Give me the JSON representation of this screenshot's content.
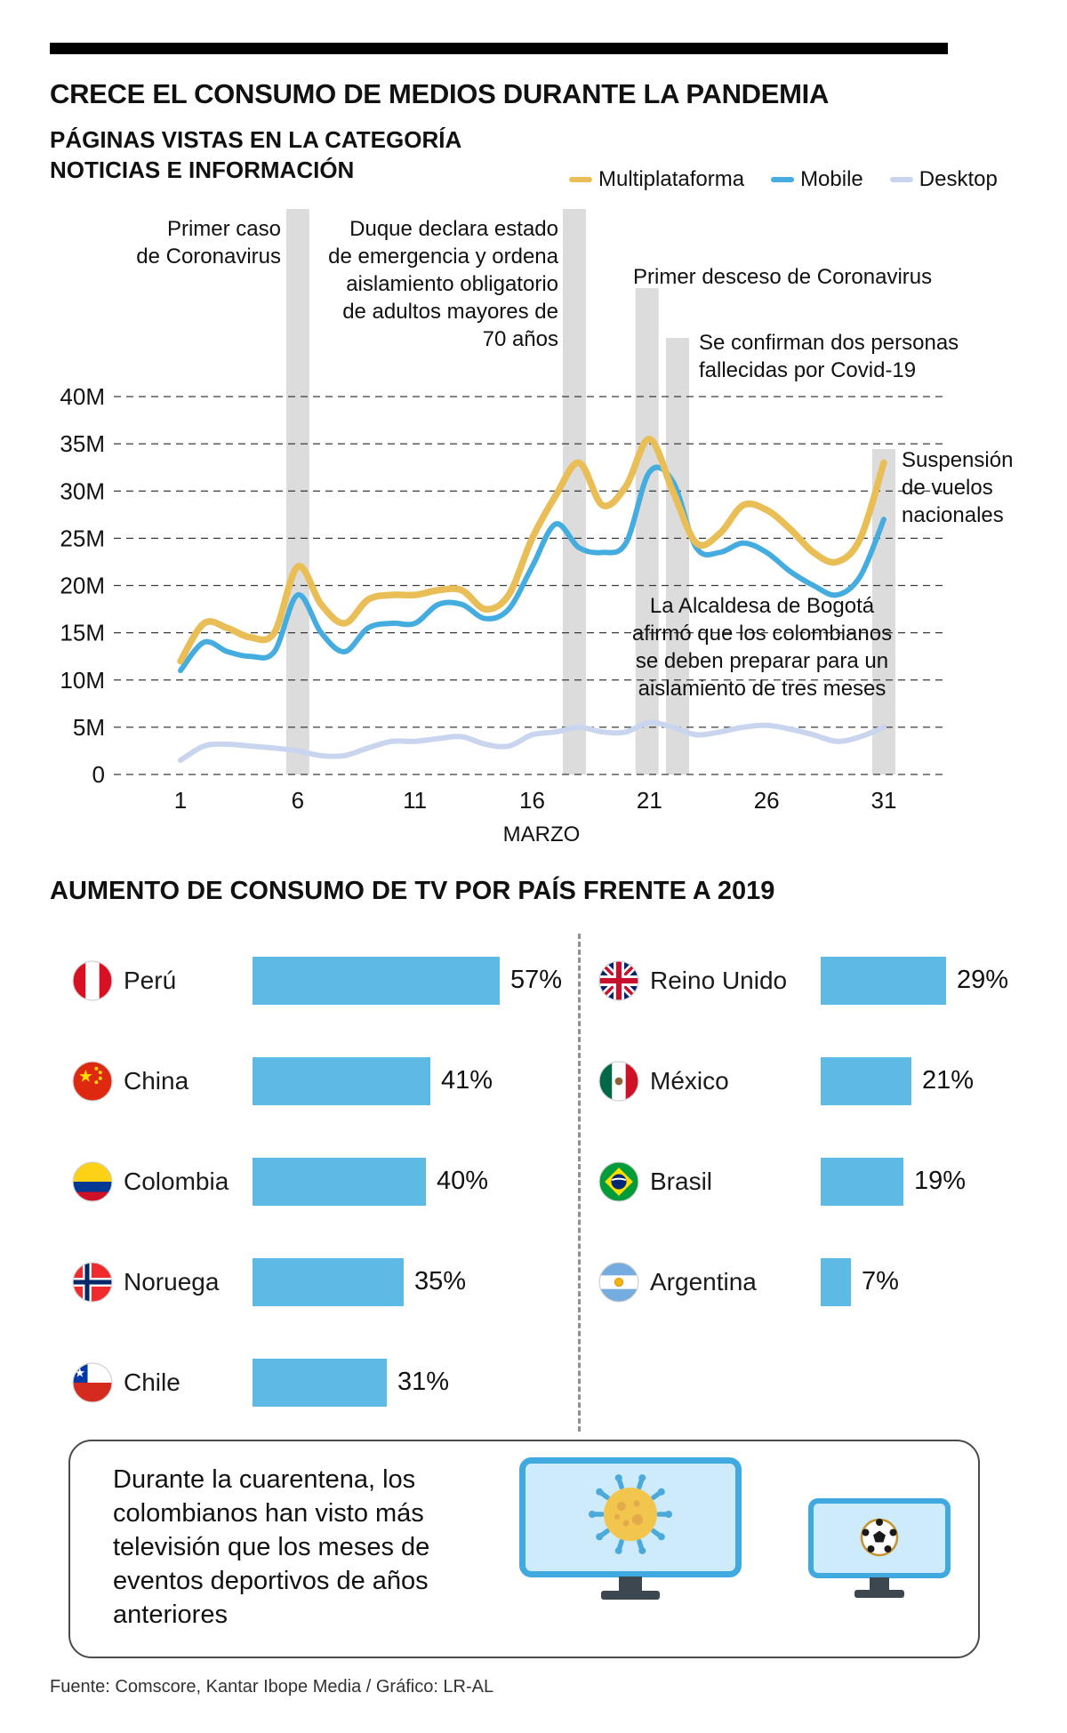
{
  "header": {
    "title": "CRECE EL CONSUMO DE MEDIOS DURANTE LA PANDEMIA",
    "subtitle": "PÁGINAS VISTAS EN LA CATEGORÍA\nNOTICIAS E INFORMACIÓN"
  },
  "chart_data": [
    {
      "type": "line",
      "title": "PÁGINAS VISTAS EN LA CATEGORÍA NOTICIAS E INFORMACIÓN",
      "xlabel": "MARZO",
      "ylabel": "",
      "y_unit": "millions of pageviews",
      "ylim": [
        0,
        40
      ],
      "ytick_labels": [
        "0",
        "5M",
        "10M",
        "15M",
        "20M",
        "25M",
        "30M",
        "35M",
        "40M"
      ],
      "xticks": [
        1,
        6,
        11,
        16,
        21,
        26,
        31
      ],
      "grid": true,
      "legend_position": "top-right",
      "x": [
        1,
        2,
        3,
        4,
        5,
        6,
        7,
        8,
        9,
        10,
        11,
        12,
        13,
        14,
        15,
        16,
        17,
        18,
        19,
        20,
        21,
        22,
        23,
        24,
        25,
        26,
        27,
        28,
        29,
        30,
        31
      ],
      "series": [
        {
          "name": "Multiplataforma",
          "color": "#E9BE56",
          "values": [
            12,
            16,
            15.5,
            14.5,
            15,
            22,
            18,
            16,
            18.5,
            19,
            19,
            19.5,
            19.5,
            17.5,
            19,
            25,
            29.5,
            33,
            28.5,
            30.5,
            35.5,
            30,
            24.5,
            25.5,
            28.5,
            28,
            26,
            23.5,
            22.5,
            25,
            33
          ]
        },
        {
          "name": "Mobile",
          "color": "#45ACDF",
          "values": [
            11,
            14,
            13,
            12.5,
            13,
            19,
            15,
            13,
            15.5,
            16,
            16,
            18,
            18,
            16.5,
            17.5,
            22,
            26.5,
            24,
            23.5,
            24.5,
            32,
            31,
            24,
            23.5,
            24.5,
            23.5,
            21.5,
            20,
            19,
            21,
            27
          ]
        },
        {
          "name": "Desktop",
          "color": "#C9D5EF",
          "values": [
            1.5,
            3,
            3.2,
            3,
            2.8,
            2.5,
            2,
            2,
            2.8,
            3.5,
            3.5,
            3.8,
            4,
            3.2,
            3,
            4.2,
            4.5,
            5,
            4.5,
            4.5,
            5.5,
            5,
            4.2,
            4.5,
            5,
            5.2,
            4.8,
            4.2,
            3.5,
            4,
            5
          ]
        }
      ],
      "annotations": [
        {
          "day": 6,
          "text": "Primer caso\nde Coronavirus"
        },
        {
          "day": 17.8,
          "text": "Duque declara estado\nde emergencia y ordena\naislamiento obligatorio\nde adultos mayores de\n70 años"
        },
        {
          "day": 20.9,
          "text": "Primer desceso de Coronavirus"
        },
        {
          "day": 22.2,
          "text": "Se confirman dos personas\nfallecidas por Covid-19"
        },
        {
          "day": 31,
          "text": "Suspensión\nde vuelos\nnacionales"
        },
        {
          "day": null,
          "text": "La Alcaldesa de Bogotá\nafirmó que los colombianos\nse deben preparar para un\naislamiento de tres meses"
        }
      ]
    },
    {
      "type": "bar",
      "title": "AUMENTO DE CONSUMO DE TV POR PAÍS FRENTE A 2019",
      "unit": "%",
      "bar_color": "#5CBAE5",
      "rows": [
        {
          "country": "Perú",
          "value": 57,
          "value_label": "57%",
          "flag": "peru-flag-icon",
          "column": "left"
        },
        {
          "country": "China",
          "value": 41,
          "value_label": "41%",
          "flag": "china-flag-icon",
          "column": "left"
        },
        {
          "country": "Colombia",
          "value": 40,
          "value_label": "40%",
          "flag": "colombia-flag-icon",
          "column": "left"
        },
        {
          "country": "Noruega",
          "value": 35,
          "value_label": "35%",
          "flag": "norway-flag-icon",
          "column": "left"
        },
        {
          "country": "Chile",
          "value": 31,
          "value_label": "31%",
          "flag": "chile-flag-icon",
          "column": "left"
        },
        {
          "country": "Reino Unido",
          "value": 29,
          "value_label": "29%",
          "flag": "uk-flag-icon",
          "column": "right"
        },
        {
          "country": "México",
          "value": 21,
          "value_label": "21%",
          "flag": "mexico-flag-icon",
          "column": "right"
        },
        {
          "country": "Brasil",
          "value": 19,
          "value_label": "19%",
          "flag": "brazil-flag-icon",
          "column": "right"
        },
        {
          "country": "Argentina",
          "value": 7,
          "value_label": "7%",
          "flag": "argentina-flag-icon",
          "column": "right"
        }
      ]
    }
  ],
  "callout": {
    "text": "Durante la cuarentena, los\ncolombianos han visto más\ntelevisión que los meses de\neventos deportivos de años\nanteriores"
  },
  "footer": {
    "source": "Fuente: Comscore, Kantar Ibope Media / Gráfico: LR-AL"
  }
}
